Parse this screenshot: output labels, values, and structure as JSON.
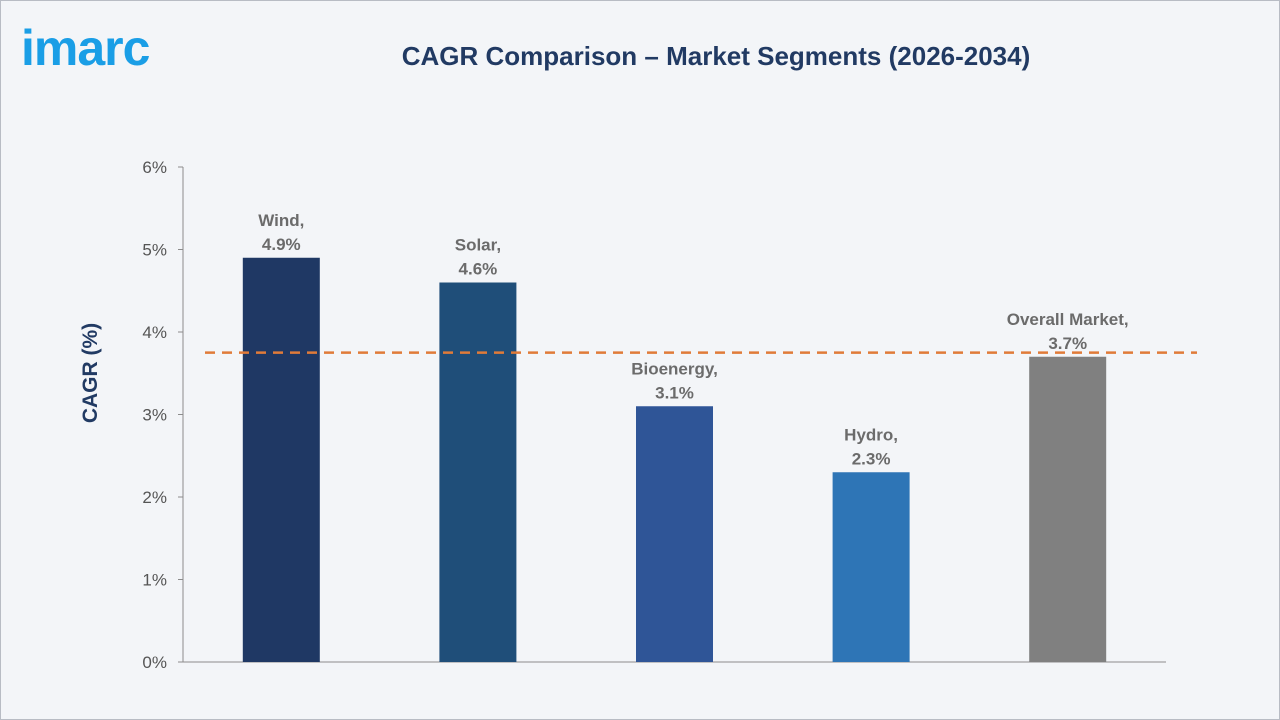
{
  "logo": {
    "text": "imarc",
    "color": "#1a9ee6"
  },
  "chart_data": {
    "type": "bar",
    "title": "CAGR Comparison – Market Segments (2026-2034)",
    "xlabel": "",
    "ylabel": "CAGR (%)",
    "ylim": [
      0,
      6
    ],
    "yticks": [
      "0%",
      "1%",
      "2%",
      "3%",
      "4%",
      "5%",
      "6%"
    ],
    "categories": [
      "Wind",
      "Solar",
      "Bioenergy",
      "Hydro",
      "Overall Market"
    ],
    "values": [
      4.9,
      4.6,
      3.1,
      2.3,
      3.7
    ],
    "data_labels": [
      [
        "Wind,",
        "4.9%"
      ],
      [
        "Solar,",
        "4.6%"
      ],
      [
        "Bioenergy,",
        "3.1%"
      ],
      [
        "Hydro,",
        "2.3%"
      ],
      [
        "Overall Market,",
        "3.7%"
      ]
    ],
    "bar_colors": [
      "#1f3864",
      "#1f4e79",
      "#2f5597",
      "#2e75b6",
      "#808080"
    ],
    "reference_line": {
      "value": 3.75,
      "style": "dashed",
      "color": "#e07b39"
    },
    "grid": false,
    "legend": "none"
  }
}
